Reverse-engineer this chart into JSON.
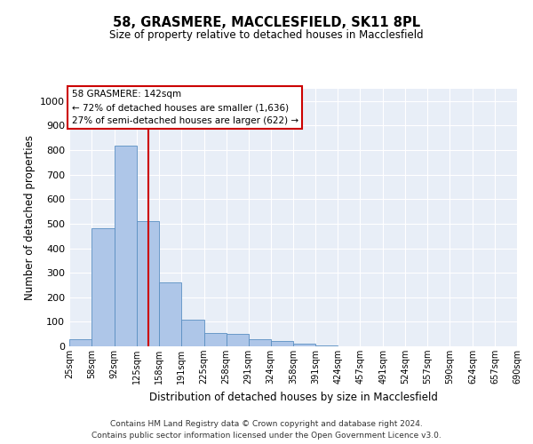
{
  "title": "58, GRASMERE, MACCLESFIELD, SK11 8PL",
  "subtitle": "Size of property relative to detached houses in Macclesfield",
  "xlabel": "Distribution of detached houses by size in Macclesfield",
  "ylabel": "Number of detached properties",
  "footer_line1": "Contains HM Land Registry data © Crown copyright and database right 2024.",
  "footer_line2": "Contains public sector information licensed under the Open Government Licence v3.0.",
  "annotation_line1": "58 GRASMERE: 142sqm",
  "annotation_line2": "← 72% of detached houses are smaller (1,636)",
  "annotation_line3": "27% of semi-detached houses are larger (622) →",
  "bar_color": "#aec6e8",
  "bar_edge_color": "#5a8fc2",
  "vline_color": "#cc0000",
  "annotation_box_edge_color": "#cc0000",
  "background_color": "#e8eef7",
  "bins": [
    25,
    58,
    92,
    125,
    158,
    191,
    225,
    258,
    291,
    324,
    358,
    391,
    424,
    457,
    491,
    524,
    557,
    590,
    624,
    657,
    690
  ],
  "bin_labels": [
    "25sqm",
    "58sqm",
    "92sqm",
    "125sqm",
    "158sqm",
    "191sqm",
    "225sqm",
    "258sqm",
    "291sqm",
    "324sqm",
    "358sqm",
    "391sqm",
    "424sqm",
    "457sqm",
    "491sqm",
    "524sqm",
    "557sqm",
    "590sqm",
    "624sqm",
    "657sqm",
    "690sqm"
  ],
  "values": [
    30,
    480,
    820,
    510,
    260,
    110,
    55,
    50,
    30,
    20,
    10,
    5,
    0,
    0,
    0,
    0,
    0,
    0,
    0,
    0
  ],
  "ylim": [
    0,
    1050
  ],
  "yticks": [
    0,
    100,
    200,
    300,
    400,
    500,
    600,
    700,
    800,
    900,
    1000
  ],
  "vline_x": 142,
  "figsize": [
    6.0,
    5.0
  ],
  "dpi": 100
}
